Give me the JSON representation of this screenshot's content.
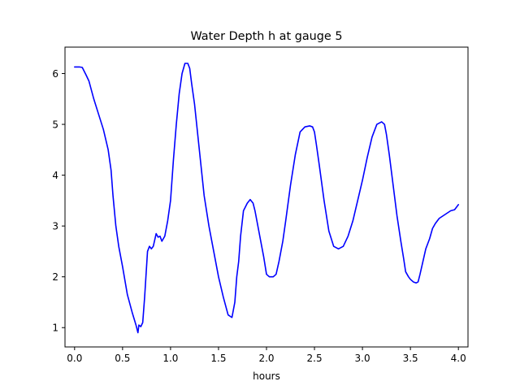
{
  "chart_data": {
    "type": "line",
    "title": "Water Depth h at gauge 5",
    "xlabel": "hours",
    "ylabel": "",
    "xlim": [
      -0.1,
      4.1
    ],
    "ylim": [
      0.62,
      6.52
    ],
    "xticks": [
      0.0,
      0.5,
      1.0,
      1.5,
      2.0,
      2.5,
      3.0,
      3.5,
      4.0
    ],
    "xtick_labels": [
      "0.0",
      "0.5",
      "1.0",
      "1.5",
      "2.0",
      "2.5",
      "3.0",
      "3.5",
      "4.0"
    ],
    "yticks": [
      1,
      2,
      3,
      4,
      5,
      6
    ],
    "ytick_labels": [
      "1",
      "2",
      "3",
      "4",
      "5",
      "6"
    ],
    "grid": false,
    "line_color": "#0000ff",
    "series": [
      {
        "x": [
          0.0,
          0.05,
          0.08,
          0.12,
          0.15,
          0.2,
          0.25,
          0.3,
          0.35,
          0.38,
          0.4,
          0.43,
          0.46,
          0.5,
          0.55,
          0.6,
          0.64,
          0.66,
          0.67,
          0.69,
          0.71,
          0.73,
          0.76,
          0.78,
          0.8,
          0.82,
          0.85,
          0.87,
          0.89,
          0.91,
          0.94,
          0.97,
          1.0,
          1.03,
          1.06,
          1.09,
          1.12,
          1.15,
          1.18,
          1.2,
          1.22,
          1.25,
          1.3,
          1.35,
          1.4,
          1.45,
          1.5,
          1.55,
          1.6,
          1.64,
          1.67,
          1.69,
          1.71,
          1.73,
          1.76,
          1.8,
          1.83,
          1.86,
          1.88,
          1.9,
          1.93,
          1.97,
          2.0,
          2.03,
          2.07,
          2.1,
          2.13,
          2.17,
          2.2,
          2.25,
          2.3,
          2.35,
          2.4,
          2.45,
          2.48,
          2.5,
          2.52,
          2.55,
          2.6,
          2.65,
          2.7,
          2.75,
          2.8,
          2.85,
          2.9,
          2.95,
          3.0,
          3.05,
          3.1,
          3.15,
          3.2,
          3.23,
          3.25,
          3.28,
          3.32,
          3.36,
          3.4,
          3.43,
          3.45,
          3.48,
          3.5,
          3.53,
          3.56,
          3.58,
          3.6,
          3.63,
          3.66,
          3.7,
          3.73,
          3.76,
          3.8,
          3.84,
          3.88,
          3.92,
          3.96,
          4.0
        ],
        "y": [
          6.13,
          6.13,
          6.12,
          5.97,
          5.85,
          5.5,
          5.2,
          4.9,
          4.5,
          4.1,
          3.6,
          3.0,
          2.6,
          2.2,
          1.65,
          1.3,
          1.05,
          0.9,
          1.05,
          1.02,
          1.1,
          1.6,
          2.5,
          2.6,
          2.55,
          2.6,
          2.85,
          2.78,
          2.8,
          2.7,
          2.8,
          3.1,
          3.5,
          4.3,
          5.0,
          5.6,
          6.0,
          6.2,
          6.2,
          6.1,
          5.8,
          5.4,
          4.5,
          3.6,
          3.0,
          2.5,
          2.0,
          1.6,
          1.25,
          1.2,
          1.5,
          2.0,
          2.3,
          2.8,
          3.3,
          3.45,
          3.52,
          3.45,
          3.3,
          3.1,
          2.8,
          2.4,
          2.05,
          2.0,
          2.0,
          2.05,
          2.3,
          2.7,
          3.1,
          3.8,
          4.4,
          4.85,
          4.95,
          4.97,
          4.95,
          4.85,
          4.6,
          4.2,
          3.5,
          2.9,
          2.6,
          2.55,
          2.6,
          2.8,
          3.1,
          3.5,
          3.9,
          4.35,
          4.75,
          5.0,
          5.05,
          5.0,
          4.8,
          4.4,
          3.8,
          3.2,
          2.7,
          2.35,
          2.1,
          2.0,
          1.95,
          1.9,
          1.88,
          1.9,
          2.05,
          2.3,
          2.55,
          2.75,
          2.95,
          3.05,
          3.15,
          3.2,
          3.25,
          3.3,
          3.32,
          3.42
        ]
      }
    ]
  }
}
